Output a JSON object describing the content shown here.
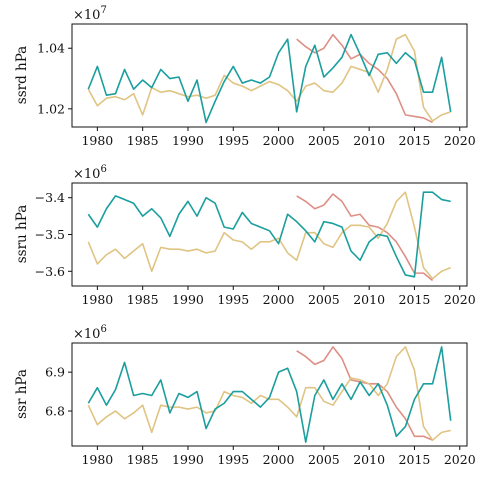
{
  "colors": {
    "teal": "#1b9e9e",
    "tan": "#e0c483",
    "salmon": "#de8f85",
    "axis": "#111111"
  },
  "chart_data": [
    {
      "type": "line",
      "ylabel": "ssrd hPa",
      "multiplier": "×10",
      "multiplier_exp": "7",
      "xlim": [
        1977.2,
        2020.8
      ],
      "ylim": [
        10140000,
        10480000
      ],
      "xticks": [
        1980,
        1985,
        1990,
        1995,
        2000,
        2005,
        2010,
        2015,
        2020
      ],
      "yticks": [
        10200000,
        10400000
      ],
      "ytick_labels": [
        "1.02",
        "1.04"
      ],
      "series": [
        {
          "color": "#de8f85",
          "x": [
            2002,
            2003,
            2004,
            2005,
            2006,
            2007,
            2008,
            2009,
            2010,
            2011,
            2012,
            2013,
            2014,
            2015,
            2016,
            2017
          ],
          "y": [
            10430000,
            10405000,
            10385000,
            10400000,
            10445000,
            10410000,
            10365000,
            10380000,
            10350000,
            10330000,
            10300000,
            10250000,
            10180000,
            10175000,
            10170000,
            10155000
          ]
        },
        {
          "color": "#e0c483",
          "x": [
            1979,
            1980,
            1981,
            1982,
            1983,
            1984,
            1985,
            1986,
            1987,
            1988,
            1989,
            1990,
            1991,
            1992,
            1993,
            1994,
            1995,
            1996,
            1997,
            1998,
            1999,
            2000,
            2001,
            2002,
            2003,
            2004,
            2005,
            2006,
            2007,
            2008,
            2009,
            2010,
            2011,
            2012,
            2013,
            2014,
            2015,
            2016,
            2017,
            2018,
            2019
          ],
          "y": [
            10265000,
            10210000,
            10235000,
            10240000,
            10230000,
            10250000,
            10180000,
            10270000,
            10255000,
            10260000,
            10250000,
            10240000,
            10245000,
            10235000,
            10245000,
            10310000,
            10285000,
            10275000,
            10260000,
            10275000,
            10290000,
            10280000,
            10260000,
            10225000,
            10275000,
            10285000,
            10260000,
            10255000,
            10285000,
            10340000,
            10330000,
            10320000,
            10255000,
            10330000,
            10430000,
            10445000,
            10390000,
            10205000,
            10160000,
            10180000,
            10190000
          ]
        },
        {
          "color": "#1b9e9e",
          "x": [
            1979,
            1980,
            1981,
            1982,
            1983,
            1984,
            1985,
            1986,
            1987,
            1988,
            1989,
            1990,
            1991,
            1992,
            1993,
            1994,
            1995,
            1996,
            1997,
            1998,
            1999,
            2000,
            2001,
            2002,
            2003,
            2004,
            2005,
            2006,
            2007,
            2008,
            2009,
            2010,
            2011,
            2012,
            2013,
            2014,
            2015,
            2016,
            2017,
            2018,
            2019
          ],
          "y": [
            10265000,
            10340000,
            10245000,
            10250000,
            10330000,
            10265000,
            10295000,
            10270000,
            10330000,
            10300000,
            10305000,
            10225000,
            10295000,
            10155000,
            10225000,
            10290000,
            10340000,
            10285000,
            10295000,
            10285000,
            10305000,
            10385000,
            10430000,
            10190000,
            10340000,
            10410000,
            10305000,
            10335000,
            10370000,
            10445000,
            10380000,
            10310000,
            10380000,
            10385000,
            10350000,
            10385000,
            10360000,
            10255000,
            10255000,
            10370000,
            10190000
          ]
        }
      ]
    },
    {
      "type": "line",
      "ylabel": "ssru hPa",
      "multiplier": "×10",
      "multiplier_exp": "6",
      "xlim": [
        1977.2,
        2020.8
      ],
      "ylim": [
        -3640000,
        -3360000
      ],
      "xticks": [
        1980,
        1985,
        1990,
        1995,
        2000,
        2005,
        2010,
        2015,
        2020
      ],
      "yticks": [
        -3600000,
        -3500000,
        -3400000
      ],
      "ytick_labels": [
        "−3.6",
        "−3.5",
        "−3.4"
      ],
      "series": [
        {
          "color": "#de8f85",
          "x": [
            2002,
            2003,
            2004,
            2005,
            2006,
            2007,
            2008,
            2009,
            2010,
            2011,
            2012,
            2013,
            2014,
            2015,
            2016,
            2017
          ],
          "y": [
            -3395000,
            -3410000,
            -3430000,
            -3420000,
            -3390000,
            -3410000,
            -3450000,
            -3445000,
            -3475000,
            -3480000,
            -3495000,
            -3520000,
            -3560000,
            -3605000,
            -3605000,
            -3625000
          ]
        },
        {
          "color": "#e0c483",
          "x": [
            1979,
            1980,
            1981,
            1982,
            1983,
            1984,
            1985,
            1986,
            1987,
            1988,
            1989,
            1990,
            1991,
            1992,
            1993,
            1994,
            1995,
            1996,
            1997,
            1998,
            1999,
            2000,
            2001,
            2002,
            2003,
            2004,
            2005,
            2006,
            2007,
            2008,
            2009,
            2010,
            2011,
            2012,
            2013,
            2014,
            2015,
            2016,
            2017,
            2018,
            2019
          ],
          "y": [
            -3520000,
            -3580000,
            -3555000,
            -3540000,
            -3565000,
            -3545000,
            -3525000,
            -3600000,
            -3535000,
            -3540000,
            -3540000,
            -3545000,
            -3540000,
            -3550000,
            -3545000,
            -3495000,
            -3515000,
            -3520000,
            -3540000,
            -3520000,
            -3520000,
            -3510000,
            -3550000,
            -3570000,
            -3495000,
            -3495000,
            -3525000,
            -3535000,
            -3495000,
            -3475000,
            -3475000,
            -3480000,
            -3510000,
            -3470000,
            -3410000,
            -3385000,
            -3480000,
            -3590000,
            -3620000,
            -3600000,
            -3590000
          ]
        },
        {
          "color": "#1b9e9e",
          "x": [
            1979,
            1980,
            1981,
            1982,
            1983,
            1984,
            1985,
            1986,
            1987,
            1988,
            1989,
            1990,
            1991,
            1992,
            1993,
            1994,
            1995,
            1996,
            1997,
            1998,
            1999,
            2000,
            2001,
            2002,
            2003,
            2004,
            2005,
            2006,
            2007,
            2008,
            2009,
            2010,
            2011,
            2012,
            2013,
            2014,
            2015,
            2016,
            2017,
            2018,
            2019
          ],
          "y": [
            -3445000,
            -3480000,
            -3430000,
            -3395000,
            -3405000,
            -3415000,
            -3450000,
            -3430000,
            -3455000,
            -3505000,
            -3445000,
            -3410000,
            -3450000,
            -3400000,
            -3415000,
            -3480000,
            -3485000,
            -3440000,
            -3470000,
            -3480000,
            -3490000,
            -3525000,
            -3445000,
            -3465000,
            -3490000,
            -3520000,
            -3465000,
            -3470000,
            -3480000,
            -3545000,
            -3570000,
            -3520000,
            -3500000,
            -3505000,
            -3560000,
            -3610000,
            -3615000,
            -3385000,
            -3385000,
            -3405000,
            -3410000
          ]
        }
      ]
    },
    {
      "type": "line",
      "ylabel": "ssr hPa",
      "multiplier": "×10",
      "multiplier_exp": "6",
      "xlim": [
        1977.2,
        2020.8
      ],
      "ylim": [
        6710000,
        6975000
      ],
      "xticks": [
        1980,
        1985,
        1990,
        1995,
        2000,
        2005,
        2010,
        2015,
        2020
      ],
      "yticks": [
        6800000,
        6900000
      ],
      "ytick_labels": [
        "6.8",
        "6.9"
      ],
      "series": [
        {
          "color": "#de8f85",
          "x": [
            2002,
            2003,
            2004,
            2005,
            2006,
            2007,
            2008,
            2009,
            2010,
            2011,
            2012,
            2013,
            2014,
            2015,
            2016,
            2017
          ],
          "y": [
            6955000,
            6940000,
            6920000,
            6930000,
            6965000,
            6935000,
            6880000,
            6875000,
            6870000,
            6870000,
            6850000,
            6810000,
            6780000,
            6735000,
            6735000,
            6725000
          ]
        },
        {
          "color": "#e0c483",
          "x": [
            1979,
            1980,
            1981,
            1982,
            1983,
            1984,
            1985,
            1986,
            1987,
            1988,
            1989,
            1990,
            1991,
            1992,
            1993,
            1994,
            1995,
            1996,
            1997,
            1998,
            1999,
            2000,
            2001,
            2002,
            2003,
            2004,
            2005,
            2006,
            2007,
            2008,
            2009,
            2010,
            2011,
            2012,
            2013,
            2014,
            2015,
            2016,
            2017,
            2018,
            2019
          ],
          "y": [
            6815000,
            6765000,
            6785000,
            6800000,
            6780000,
            6795000,
            6815000,
            6745000,
            6815000,
            6810000,
            6810000,
            6805000,
            6810000,
            6795000,
            6800000,
            6850000,
            6840000,
            6835000,
            6820000,
            6840000,
            6830000,
            6830000,
            6810000,
            6785000,
            6860000,
            6860000,
            6825000,
            6815000,
            6850000,
            6885000,
            6880000,
            6870000,
            6840000,
            6870000,
            6940000,
            6965000,
            6905000,
            6760000,
            6725000,
            6745000,
            6750000
          ]
        },
        {
          "color": "#1b9e9e",
          "x": [
            1979,
            1980,
            1981,
            1982,
            1983,
            1984,
            1985,
            1986,
            1987,
            1988,
            1989,
            1990,
            1991,
            1992,
            1993,
            1994,
            1995,
            1996,
            1997,
            1998,
            1999,
            2000,
            2001,
            2002,
            2003,
            2004,
            2005,
            2006,
            2007,
            2008,
            2009,
            2010,
            2011,
            2012,
            2013,
            2014,
            2015,
            2016,
            2017,
            2018,
            2019
          ],
          "y": [
            6820000,
            6860000,
            6815000,
            6855000,
            6925000,
            6840000,
            6845000,
            6840000,
            6880000,
            6795000,
            6845000,
            6835000,
            6850000,
            6755000,
            6805000,
            6820000,
            6850000,
            6850000,
            6830000,
            6810000,
            6835000,
            6900000,
            6910000,
            6850000,
            6720000,
            6840000,
            6880000,
            6830000,
            6870000,
            6830000,
            6875000,
            6840000,
            6870000,
            6815000,
            6735000,
            6760000,
            6830000,
            6870000,
            6870000,
            6965000,
            6775000
          ]
        }
      ]
    }
  ]
}
